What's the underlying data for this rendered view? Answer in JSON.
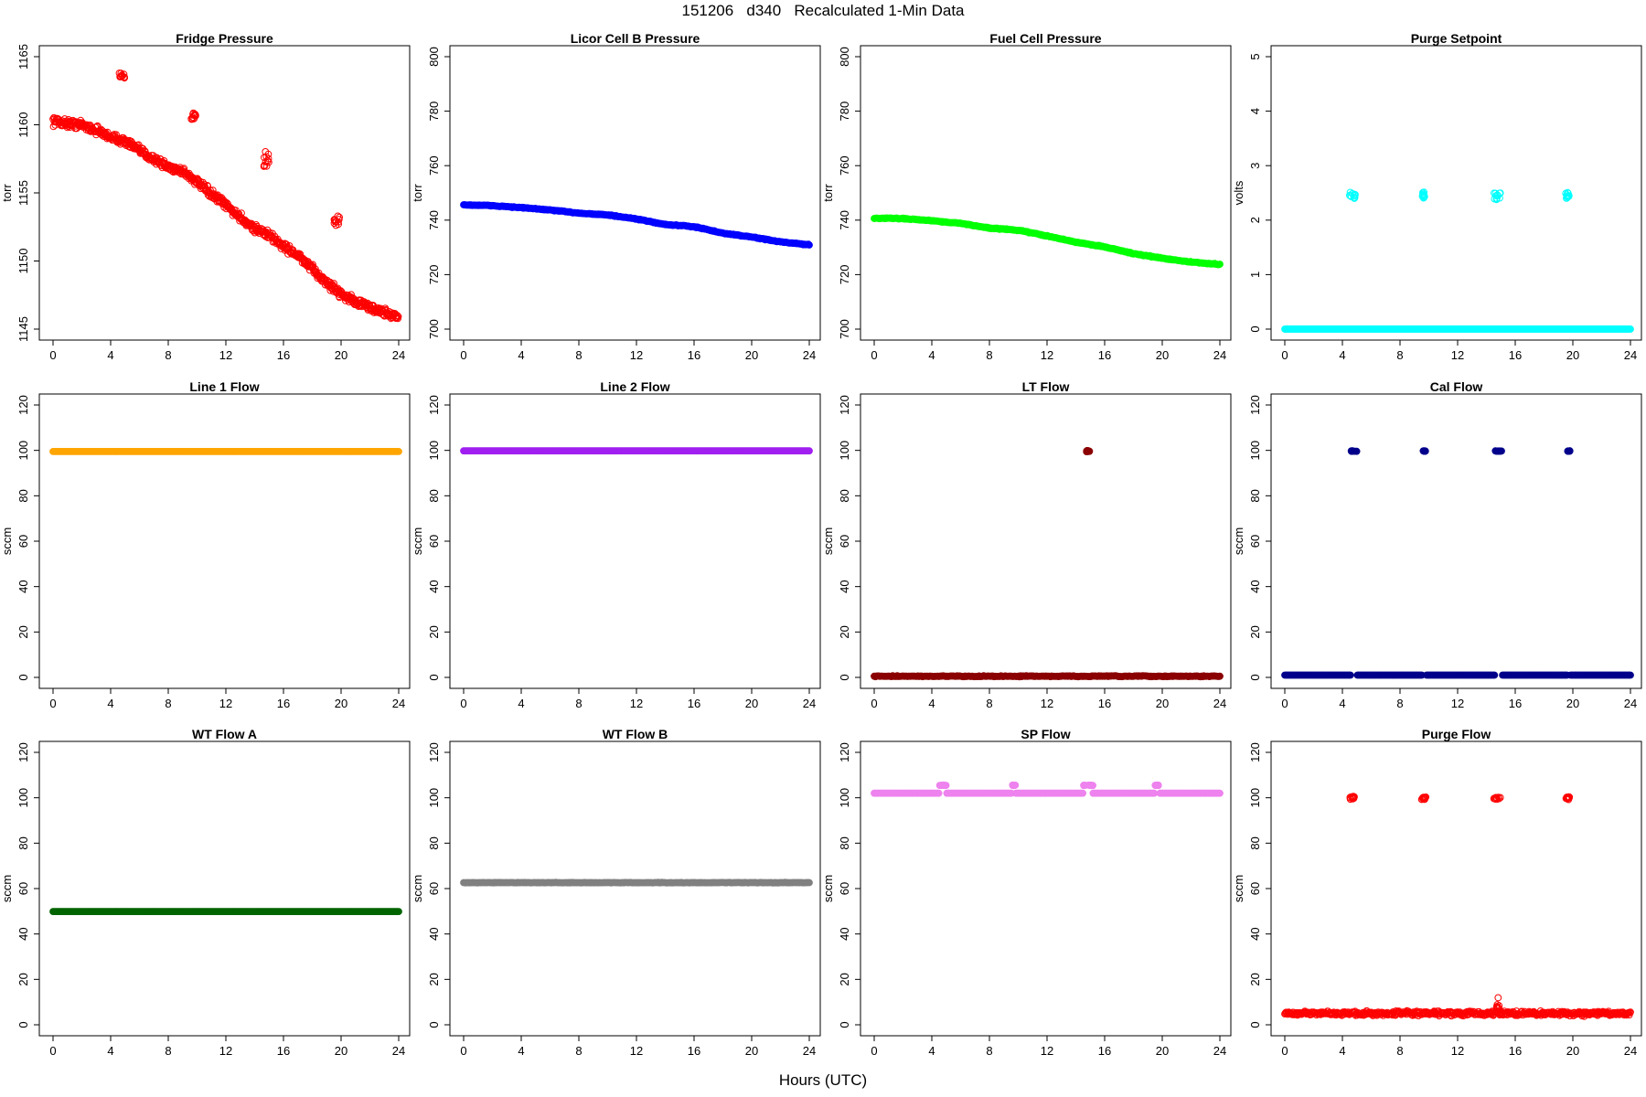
{
  "figure": {
    "title": "151206   d340   Recalculated 1-Min Data",
    "xlabel": "Hours (UTC)"
  },
  "chart_data": [
    {
      "type": "scatter",
      "title": "Fridge Pressure",
      "ylabel": "torr",
      "color": "#ff0000",
      "marker": "open",
      "xlim": [
        0,
        24
      ],
      "ylim": [
        1145,
        1165
      ],
      "xticks": [
        0,
        4,
        8,
        12,
        16,
        20,
        24
      ],
      "yticks": [
        1145,
        1150,
        1155,
        1160,
        1165
      ],
      "series": [
        {
          "kind": "curve",
          "x": [
            0,
            1,
            2,
            3,
            4,
            5,
            6,
            7,
            8,
            9,
            10,
            11,
            12,
            13,
            14,
            15,
            16,
            17,
            18,
            19,
            20,
            21,
            22,
            23,
            24
          ],
          "y": [
            1160.3,
            1160.1,
            1160.0,
            1159.6,
            1159.1,
            1158.8,
            1158.1,
            1157.5,
            1156.9,
            1156.6,
            1155.8,
            1154.9,
            1154.1,
            1153.2,
            1152.4,
            1151.9,
            1151.1,
            1150.4,
            1149.4,
            1148.4,
            1147.6,
            1147.0,
            1146.6,
            1146.2,
            1145.9
          ],
          "noise": 0.45
        },
        {
          "kind": "cluster",
          "x": [
            4.6,
            5.0
          ],
          "y": [
            1163.4,
            1163.8
          ]
        },
        {
          "kind": "cluster",
          "x": [
            9.6,
            9.9
          ],
          "y": [
            1160.3,
            1160.9
          ]
        },
        {
          "kind": "cluster",
          "x": [
            14.5,
            15.0
          ],
          "y": [
            1156.8,
            1158.3
          ]
        },
        {
          "kind": "cluster",
          "x": [
            19.5,
            19.9
          ],
          "y": [
            1152.6,
            1153.3
          ]
        }
      ]
    },
    {
      "type": "scatter",
      "title": "Licor Cell B Pressure",
      "ylabel": "torr",
      "color": "#0000ff",
      "marker": "filled",
      "xlim": [
        0,
        24
      ],
      "ylim": [
        700,
        800
      ],
      "xticks": [
        0,
        4,
        8,
        12,
        16,
        20,
        24
      ],
      "yticks": [
        700,
        720,
        740,
        760,
        780,
        800
      ],
      "series": [
        {
          "kind": "curve",
          "x": [
            0,
            2,
            4,
            6,
            8,
            10,
            12,
            14,
            16,
            18,
            20,
            22,
            24
          ],
          "y": [
            745.6,
            745.3,
            744.6,
            743.7,
            742.6,
            741.9,
            740.4,
            738.4,
            737.6,
            735.2,
            733.8,
            732.0,
            730.9
          ],
          "noise": 0.25
        }
      ]
    },
    {
      "type": "scatter",
      "title": "Fuel Cell Pressure",
      "ylabel": "torr",
      "color": "#00ff00",
      "marker": "filled",
      "xlim": [
        0,
        24
      ],
      "ylim": [
        700,
        800
      ],
      "xticks": [
        0,
        4,
        8,
        12,
        16,
        20,
        24
      ],
      "yticks": [
        700,
        720,
        740,
        760,
        780,
        800
      ],
      "series": [
        {
          "kind": "curve",
          "x": [
            0,
            2,
            4,
            6,
            8,
            10,
            12,
            14,
            16,
            18,
            20,
            22,
            24
          ],
          "y": [
            740.7,
            740.6,
            739.8,
            738.8,
            737.1,
            736.3,
            734.2,
            731.9,
            730.2,
            727.7,
            726.0,
            724.6,
            723.7
          ],
          "noise": 0.25
        }
      ]
    },
    {
      "type": "scatter",
      "title": "Purge Setpoint",
      "ylabel": "volts",
      "color": "#00ffff",
      "marker": "open",
      "xlim": [
        0,
        24
      ],
      "ylim": [
        0,
        5
      ],
      "xticks": [
        0,
        4,
        8,
        12,
        16,
        20,
        24
      ],
      "yticks": [
        0,
        1,
        2,
        3,
        4,
        5
      ],
      "series": [
        {
          "kind": "flat",
          "y": 0.0,
          "noise": 0
        },
        {
          "kind": "cluster",
          "x": [
            4.5,
            4.9
          ],
          "y": [
            2.38,
            2.52
          ]
        },
        {
          "kind": "cluster",
          "x": [
            9.5,
            9.8
          ],
          "y": [
            2.4,
            2.52
          ]
        },
        {
          "kind": "cluster",
          "x": [
            14.5,
            15.0
          ],
          "y": [
            2.36,
            2.52
          ]
        },
        {
          "kind": "cluster",
          "x": [
            19.5,
            19.8
          ],
          "y": [
            2.4,
            2.52
          ]
        }
      ]
    },
    {
      "type": "scatter",
      "title": "Line 1 Flow",
      "ylabel": "sccm",
      "color": "#ffa500",
      "marker": "filled",
      "xlim": [
        0,
        24
      ],
      "ylim": [
        0,
        120
      ],
      "xticks": [
        0,
        4,
        8,
        12,
        16,
        20,
        24
      ],
      "yticks": [
        0,
        20,
        40,
        60,
        80,
        100,
        120
      ],
      "series": [
        {
          "kind": "flat",
          "y": 99.5,
          "noise": 0
        }
      ]
    },
    {
      "type": "scatter",
      "title": "Line 2 Flow",
      "ylabel": "sccm",
      "color": "#a020f0",
      "marker": "filled",
      "xlim": [
        0,
        24
      ],
      "ylim": [
        0,
        120
      ],
      "xticks": [
        0,
        4,
        8,
        12,
        16,
        20,
        24
      ],
      "yticks": [
        0,
        20,
        40,
        60,
        80,
        100,
        120
      ],
      "series": [
        {
          "kind": "flat",
          "y": 99.8,
          "noise": 0
        }
      ]
    },
    {
      "type": "scatter",
      "title": "LT Flow",
      "ylabel": "sccm",
      "color": "#8b0000",
      "marker": "filled",
      "xlim": [
        0,
        24
      ],
      "ylim": [
        0,
        120
      ],
      "xticks": [
        0,
        4,
        8,
        12,
        16,
        20,
        24
      ],
      "yticks": [
        0,
        20,
        40,
        60,
        80,
        100,
        120
      ],
      "series": [
        {
          "kind": "flat",
          "y": 0.5,
          "noise": 0.3
        },
        {
          "kind": "cluster",
          "x": [
            14.7,
            15.0
          ],
          "y": [
            99.4,
            100.0
          ]
        }
      ]
    },
    {
      "type": "scatter",
      "title": "Cal Flow",
      "ylabel": "sccm",
      "color": "#00008b",
      "marker": "filled",
      "xlim": [
        0,
        24
      ],
      "ylim": [
        0,
        120
      ],
      "xticks": [
        0,
        4,
        8,
        12,
        16,
        20,
        24
      ],
      "yticks": [
        0,
        20,
        40,
        60,
        80,
        100,
        120
      ],
      "series": [
        {
          "kind": "flat",
          "y": 1.0,
          "noise": 0,
          "gaps": [
            [
              4.6,
              5.0
            ],
            [
              9.6,
              9.8
            ],
            [
              14.6,
              15.1
            ],
            [
              19.6,
              19.8
            ]
          ]
        },
        {
          "kind": "cluster",
          "x": [
            4.6,
            5.0
          ],
          "y": [
            99.6,
            99.8
          ]
        },
        {
          "kind": "cluster",
          "x": [
            9.6,
            9.8
          ],
          "y": [
            99.6,
            99.8
          ]
        },
        {
          "kind": "cluster",
          "x": [
            14.6,
            15.1
          ],
          "y": [
            99.6,
            99.8
          ]
        },
        {
          "kind": "cluster",
          "x": [
            19.6,
            19.8
          ],
          "y": [
            99.6,
            99.8
          ]
        }
      ]
    },
    {
      "type": "scatter",
      "title": "WT Flow A",
      "ylabel": "sccm",
      "color": "#006400",
      "marker": "filled",
      "xlim": [
        0,
        24
      ],
      "ylim": [
        0,
        120
      ],
      "xticks": [
        0,
        4,
        8,
        12,
        16,
        20,
        24
      ],
      "yticks": [
        0,
        20,
        40,
        60,
        80,
        100,
        120
      ],
      "series": [
        {
          "kind": "flat",
          "y": 49.9,
          "noise": 0
        }
      ]
    },
    {
      "type": "scatter",
      "title": "WT Flow B",
      "ylabel": "sccm",
      "color": "#808080",
      "marker": "filled",
      "xlim": [
        0,
        24
      ],
      "ylim": [
        0,
        120
      ],
      "xticks": [
        0,
        4,
        8,
        12,
        16,
        20,
        24
      ],
      "yticks": [
        0,
        20,
        40,
        60,
        80,
        100,
        120
      ],
      "series": [
        {
          "kind": "flat",
          "y": 62.6,
          "noise": 0.15
        }
      ]
    },
    {
      "type": "scatter",
      "title": "SP Flow",
      "ylabel": "sccm",
      "color": "#ee82ee",
      "marker": "filled",
      "xlim": [
        0,
        24
      ],
      "ylim": [
        0,
        120
      ],
      "xticks": [
        0,
        4,
        8,
        12,
        16,
        20,
        24
      ],
      "yticks": [
        0,
        20,
        40,
        60,
        80,
        100,
        120
      ],
      "series": [
        {
          "kind": "flat",
          "y": 102.0,
          "noise": 0,
          "gaps": [
            [
              4.5,
              5.0
            ],
            [
              9.6,
              9.8
            ],
            [
              14.5,
              15.2
            ],
            [
              19.5,
              19.8
            ]
          ]
        },
        {
          "kind": "cluster",
          "x": [
            4.5,
            5.0
          ],
          "y": [
            105.4,
            105.6
          ]
        },
        {
          "kind": "cluster",
          "x": [
            9.6,
            9.8
          ],
          "y": [
            105.4,
            105.6
          ]
        },
        {
          "kind": "cluster",
          "x": [
            14.5,
            15.2
          ],
          "y": [
            105.4,
            105.6
          ]
        },
        {
          "kind": "cluster",
          "x": [
            19.5,
            19.8
          ],
          "y": [
            105.4,
            105.6
          ]
        }
      ]
    },
    {
      "type": "scatter",
      "title": "Purge Flow",
      "ylabel": "sccm",
      "color": "#ff0000",
      "marker": "open",
      "xlim": [
        0,
        24
      ],
      "ylim": [
        0,
        120
      ],
      "xticks": [
        0,
        4,
        8,
        12,
        16,
        20,
        24
      ],
      "yticks": [
        0,
        20,
        40,
        60,
        80,
        100,
        120
      ],
      "series": [
        {
          "kind": "flat",
          "y": 5.0,
          "noise": 1.4
        },
        {
          "kind": "cluster",
          "x": [
            14.7,
            14.9
          ],
          "y": [
            5,
            12
          ]
        },
        {
          "kind": "cluster",
          "x": [
            4.5,
            4.9
          ],
          "y": [
            99.2,
            100.6
          ]
        },
        {
          "kind": "cluster",
          "x": [
            9.5,
            9.8
          ],
          "y": [
            99.2,
            100.4
          ]
        },
        {
          "kind": "cluster",
          "x": [
            14.5,
            15.0
          ],
          "y": [
            99.2,
            100.4
          ]
        },
        {
          "kind": "cluster",
          "x": [
            19.5,
            19.8
          ],
          "y": [
            99.2,
            100.6
          ]
        }
      ]
    }
  ]
}
